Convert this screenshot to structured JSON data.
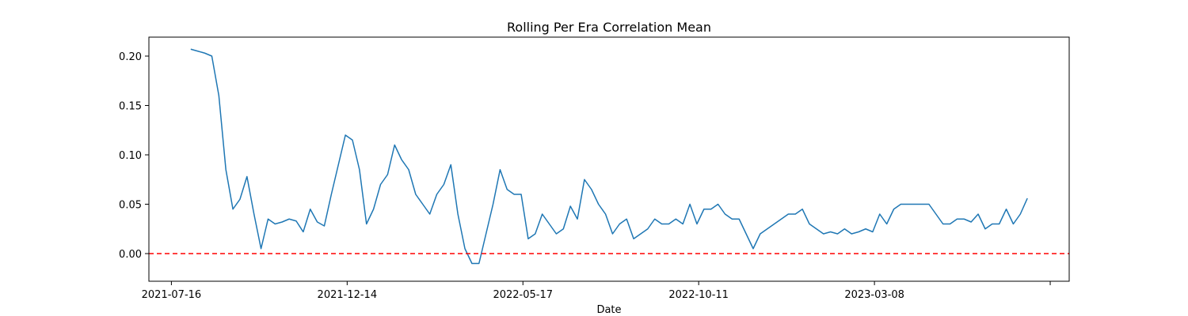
{
  "chart_data": {
    "type": "line",
    "title": "Rolling Per Era Correlation Mean",
    "x_label": "Date",
    "x": [
      11,
      15,
      19,
      23,
      27,
      31,
      35,
      39,
      43,
      47,
      51,
      55,
      59,
      63,
      67,
      71,
      75,
      79,
      83,
      87,
      91,
      95,
      99,
      103,
      107,
      111,
      115,
      119,
      123,
      127,
      131,
      135,
      139,
      143,
      147,
      151,
      155,
      159,
      163,
      167,
      171,
      175,
      179,
      183,
      187,
      191,
      195,
      199,
      203,
      207,
      211,
      215,
      219,
      223,
      227,
      231,
      235,
      239,
      243,
      247,
      251,
      255,
      259,
      263,
      267,
      271,
      275,
      279,
      283,
      287,
      291,
      295,
      299,
      303,
      307,
      311,
      315,
      319,
      323,
      327,
      331,
      335,
      339,
      343,
      347,
      351,
      355,
      359,
      363,
      367,
      371,
      375,
      379,
      383,
      387,
      391,
      395,
      399,
      403,
      407,
      411,
      415,
      419,
      423,
      427,
      431,
      435,
      439,
      443,
      447,
      451,
      455,
      459,
      463,
      467,
      471,
      475,
      479,
      483,
      487
    ],
    "values": [
      0.207,
      0.205,
      0.203,
      0.2,
      0.16,
      0.085,
      0.045,
      0.055,
      0.078,
      0.04,
      0.005,
      0.035,
      0.03,
      0.032,
      0.035,
      0.033,
      0.022,
      0.045,
      0.032,
      0.028,
      0.06,
      0.09,
      0.12,
      0.115,
      0.085,
      0.03,
      0.045,
      0.07,
      0.08,
      0.11,
      0.095,
      0.085,
      0.06,
      0.05,
      0.04,
      0.06,
      0.07,
      0.09,
      0.04,
      0.005,
      -0.01,
      -0.01,
      0.02,
      0.05,
      0.085,
      0.065,
      0.06,
      0.06,
      0.015,
      0.02,
      0.04,
      0.03,
      0.02,
      0.025,
      0.048,
      0.035,
      0.075,
      0.065,
      0.05,
      0.04,
      0.02,
      0.03,
      0.035,
      0.015,
      0.02,
      0.025,
      0.035,
      0.03,
      0.03,
      0.035,
      0.03,
      0.05,
      0.03,
      0.045,
      0.045,
      0.05,
      0.04,
      0.035,
      0.035,
      0.02,
      0.005,
      0.02,
      0.025,
      0.03,
      0.035,
      0.04,
      0.04,
      0.045,
      0.03,
      0.025,
      0.02,
      0.022,
      0.02,
      0.025,
      0.02,
      0.022,
      0.025,
      0.022,
      0.04,
      0.03,
      0.045,
      0.05,
      0.05,
      0.05,
      0.05,
      0.05,
      0.04,
      0.03,
      0.03,
      0.035,
      0.035,
      0.032,
      0.04,
      0.025,
      0.03,
      0.03,
      0.045,
      0.03,
      0.04,
      0.056
    ],
    "color": "#1f77b4",
    "xlim": [
      -12.8,
      510.8
    ],
    "xticks": [
      {
        "value": 0,
        "label": "2021-07-16"
      },
      {
        "value": 100,
        "label": "2021-12-14"
      },
      {
        "value": 200,
        "label": "2022-05-17"
      },
      {
        "value": 300,
        "label": "2022-10-11"
      },
      {
        "value": 400,
        "label": "2023-03-08"
      },
      {
        "value": 500,
        "label": null
      }
    ],
    "ylim": [
      -0.028,
      0.2192
    ],
    "yticks": [
      {
        "value": 0,
        "label": "0.00"
      },
      {
        "value": 0.05,
        "label": "0.05"
      },
      {
        "value": 0.1,
        "label": "0.10"
      },
      {
        "value": 0.15,
        "label": "0.15"
      },
      {
        "value": 0.2,
        "label": "0.20"
      }
    ],
    "hline": {
      "y": 0,
      "color": "#ff0000",
      "dashed": true
    }
  }
}
